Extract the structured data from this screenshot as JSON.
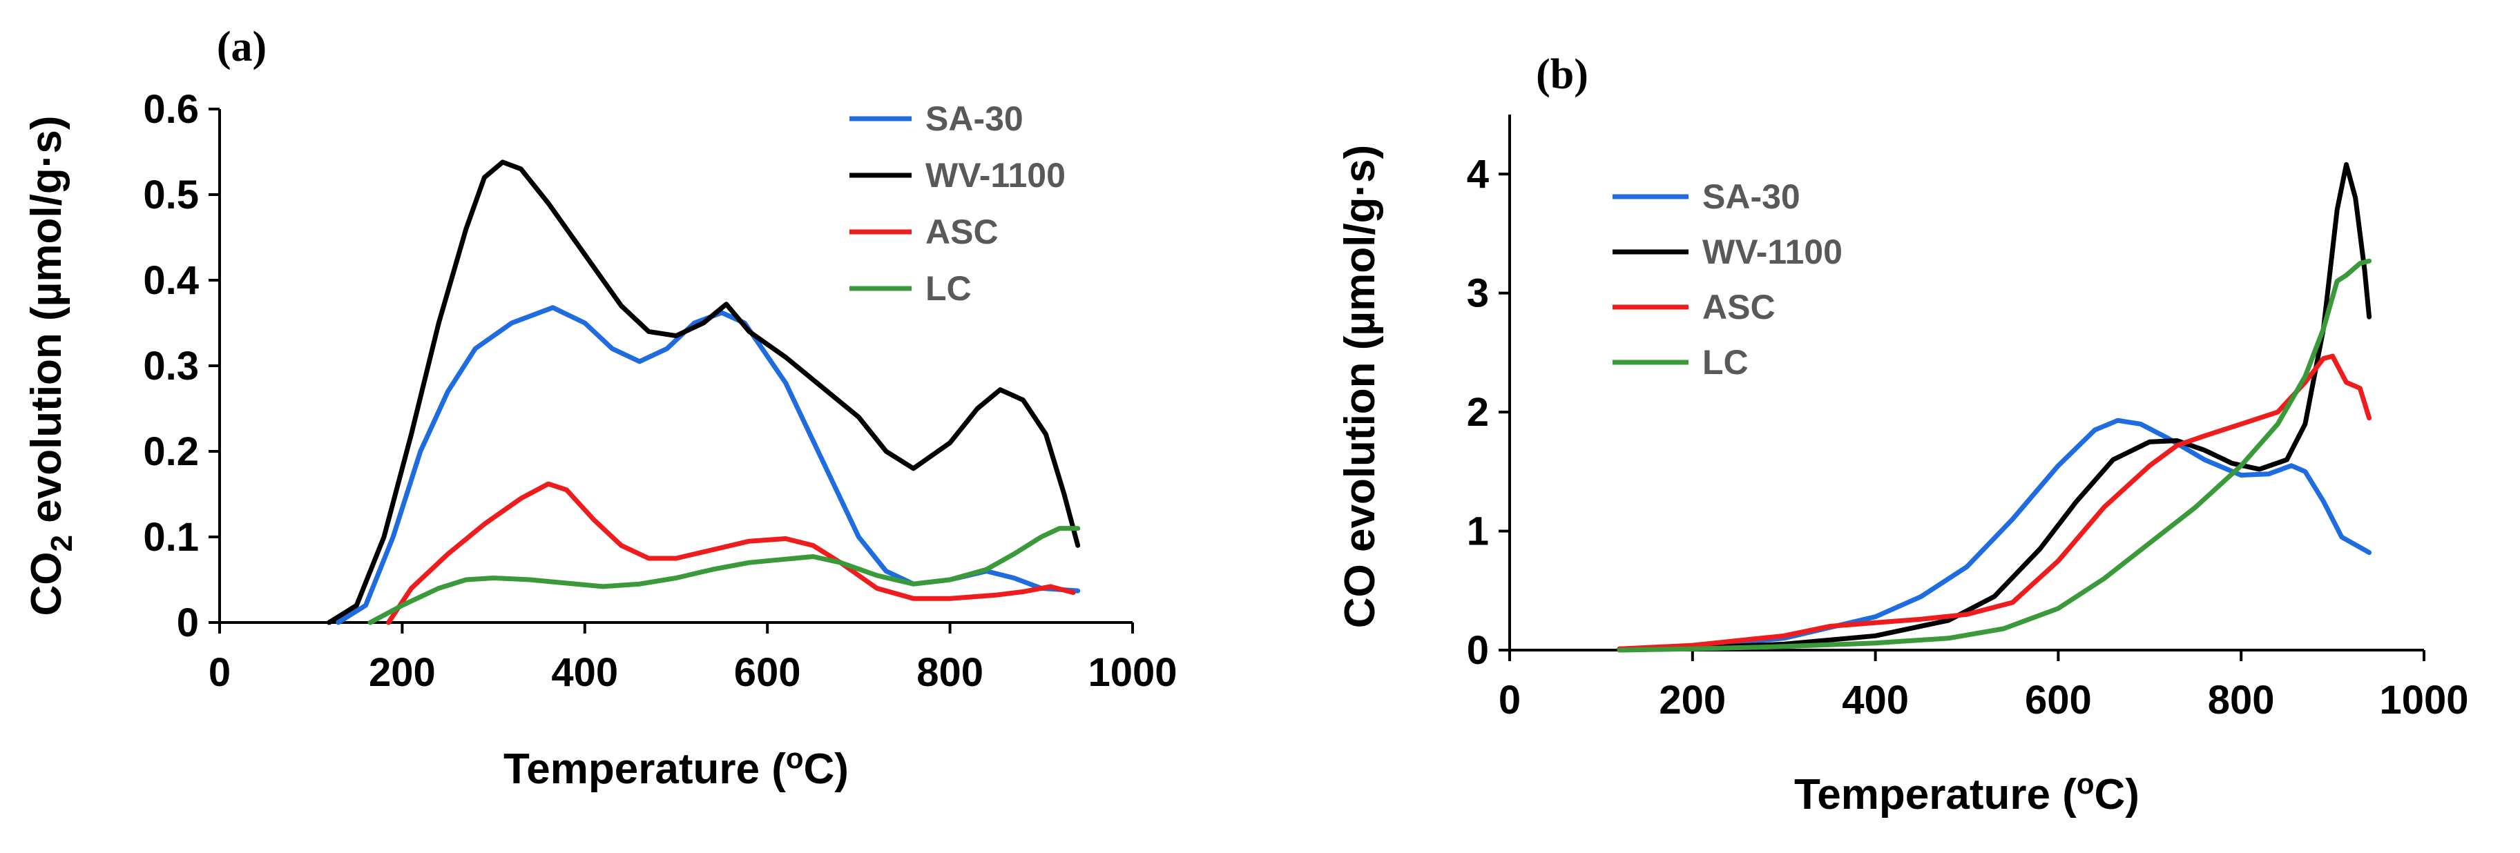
{
  "chart_data": [
    {
      "panel": "(a)",
      "type": "line",
      "xlabel": "Temperature (",
      "xlabel_sup": "o",
      "xlabel_end": "C)",
      "ylabel_pre": "CO",
      "ylabel_sub": "2",
      "ylabel_post": " evolution (µmol/g·s)",
      "xlim": [
        0,
        1000
      ],
      "ylim": [
        0,
        0.6
      ],
      "xticks": [
        0,
        200,
        400,
        600,
        800,
        1000
      ],
      "yticks": [
        0,
        0.1,
        0.2,
        0.3,
        0.4,
        0.5,
        0.6
      ],
      "ytick_labels": [
        "0",
        "0.1",
        "0.2",
        "0.3",
        "0.4",
        "0.5",
        "0.6"
      ],
      "grid": false,
      "legend_position": "top-right",
      "series": [
        {
          "name": "SA-30",
          "color": "#1f6be0",
          "points": [
            [
              130,
              0
            ],
            [
              160,
              0.02
            ],
            [
              190,
              0.1
            ],
            [
              220,
              0.2
            ],
            [
              250,
              0.27
            ],
            [
              280,
              0.32
            ],
            [
              320,
              0.35
            ],
            [
              365,
              0.368
            ],
            [
              400,
              0.35
            ],
            [
              430,
              0.32
            ],
            [
              460,
              0.305
            ],
            [
              490,
              0.32
            ],
            [
              520,
              0.35
            ],
            [
              550,
              0.362
            ],
            [
              575,
              0.35
            ],
            [
              620,
              0.28
            ],
            [
              660,
              0.19
            ],
            [
              700,
              0.1
            ],
            [
              730,
              0.06
            ],
            [
              760,
              0.045
            ],
            [
              800,
              0.05
            ],
            [
              840,
              0.06
            ],
            [
              870,
              0.052
            ],
            [
              900,
              0.04
            ],
            [
              940,
              0.037
            ]
          ]
        },
        {
          "name": "WV-1100",
          "color": "#000000",
          "points": [
            [
              120,
              0
            ],
            [
              150,
              0.02
            ],
            [
              180,
              0.1
            ],
            [
              210,
              0.22
            ],
            [
              240,
              0.35
            ],
            [
              270,
              0.46
            ],
            [
              290,
              0.52
            ],
            [
              310,
              0.538
            ],
            [
              330,
              0.53
            ],
            [
              360,
              0.49
            ],
            [
              400,
              0.43
            ],
            [
              440,
              0.37
            ],
            [
              470,
              0.34
            ],
            [
              500,
              0.335
            ],
            [
              530,
              0.35
            ],
            [
              555,
              0.372
            ],
            [
              580,
              0.34
            ],
            [
              620,
              0.31
            ],
            [
              660,
              0.275
            ],
            [
              700,
              0.24
            ],
            [
              730,
              0.2
            ],
            [
              760,
              0.18
            ],
            [
              800,
              0.21
            ],
            [
              830,
              0.25
            ],
            [
              855,
              0.272
            ],
            [
              880,
              0.26
            ],
            [
              905,
              0.22
            ],
            [
              925,
              0.15
            ],
            [
              940,
              0.09
            ]
          ]
        },
        {
          "name": "ASC",
          "color": "#ee1c1c",
          "points": [
            [
              185,
              0
            ],
            [
              210,
              0.04
            ],
            [
              250,
              0.08
            ],
            [
              290,
              0.115
            ],
            [
              330,
              0.145
            ],
            [
              360,
              0.162
            ],
            [
              380,
              0.155
            ],
            [
              410,
              0.12
            ],
            [
              440,
              0.09
            ],
            [
              470,
              0.075
            ],
            [
              500,
              0.075
            ],
            [
              540,
              0.085
            ],
            [
              580,
              0.095
            ],
            [
              620,
              0.098
            ],
            [
              650,
              0.09
            ],
            [
              680,
              0.07
            ],
            [
              720,
              0.04
            ],
            [
              760,
              0.028
            ],
            [
              800,
              0.028
            ],
            [
              850,
              0.032
            ],
            [
              880,
              0.036
            ],
            [
              910,
              0.042
            ],
            [
              935,
              0.035
            ]
          ]
        },
        {
          "name": "LC",
          "color": "#3a9a3a",
          "points": [
            [
              165,
              0
            ],
            [
              200,
              0.02
            ],
            [
              240,
              0.04
            ],
            [
              270,
              0.05
            ],
            [
              300,
              0.052
            ],
            [
              340,
              0.05
            ],
            [
              380,
              0.046
            ],
            [
              420,
              0.042
            ],
            [
              460,
              0.045
            ],
            [
              500,
              0.052
            ],
            [
              540,
              0.062
            ],
            [
              580,
              0.07
            ],
            [
              620,
              0.074
            ],
            [
              650,
              0.077
            ],
            [
              680,
              0.07
            ],
            [
              720,
              0.055
            ],
            [
              760,
              0.045
            ],
            [
              800,
              0.05
            ],
            [
              840,
              0.062
            ],
            [
              870,
              0.08
            ],
            [
              900,
              0.1
            ],
            [
              920,
              0.11
            ],
            [
              940,
              0.11
            ]
          ]
        }
      ]
    },
    {
      "panel": "(b)",
      "type": "line",
      "xlabel": "Temperature (",
      "xlabel_sup": "o",
      "xlabel_end": "C)",
      "ylabel_pre": "CO evolution (µmol/g·s)",
      "ylabel_sub": "",
      "ylabel_post": "",
      "xlim": [
        0,
        1000
      ],
      "ylim": [
        0,
        4.5
      ],
      "xticks": [
        0,
        200,
        400,
        600,
        800,
        1000
      ],
      "yticks": [
        0,
        1,
        2,
        3,
        4
      ],
      "ytick_labels": [
        "0",
        "1",
        "2",
        "3",
        "4"
      ],
      "grid": false,
      "legend_position": "top-left",
      "series": [
        {
          "name": "SA-30",
          "color": "#1f6be0",
          "points": [
            [
              120,
              0.01
            ],
            [
              200,
              0.03
            ],
            [
              300,
              0.1
            ],
            [
              400,
              0.28
            ],
            [
              450,
              0.45
            ],
            [
              500,
              0.7
            ],
            [
              550,
              1.1
            ],
            [
              600,
              1.55
            ],
            [
              640,
              1.85
            ],
            [
              665,
              1.93
            ],
            [
              690,
              1.9
            ],
            [
              720,
              1.78
            ],
            [
              760,
              1.6
            ],
            [
              800,
              1.47
            ],
            [
              830,
              1.48
            ],
            [
              855,
              1.55
            ],
            [
              870,
              1.5
            ],
            [
              890,
              1.25
            ],
            [
              910,
              0.95
            ],
            [
              940,
              0.82
            ]
          ]
        },
        {
          "name": "WV-1100",
          "color": "#000000",
          "points": [
            [
              120,
              0.01
            ],
            [
              200,
              0.02
            ],
            [
              300,
              0.05
            ],
            [
              400,
              0.12
            ],
            [
              480,
              0.25
            ],
            [
              530,
              0.45
            ],
            [
              580,
              0.85
            ],
            [
              620,
              1.25
            ],
            [
              660,
              1.6
            ],
            [
              700,
              1.75
            ],
            [
              730,
              1.76
            ],
            [
              760,
              1.68
            ],
            [
              790,
              1.57
            ],
            [
              820,
              1.52
            ],
            [
              850,
              1.6
            ],
            [
              870,
              1.9
            ],
            [
              890,
              2.7
            ],
            [
              905,
              3.7
            ],
            [
              915,
              4.08
            ],
            [
              925,
              3.8
            ],
            [
              935,
              3.2
            ],
            [
              940,
              2.8
            ]
          ]
        },
        {
          "name": "ASC",
          "color": "#ee1c1c",
          "points": [
            [
              120,
              0.01
            ],
            [
              200,
              0.04
            ],
            [
              300,
              0.12
            ],
            [
              350,
              0.2
            ],
            [
              400,
              0.23
            ],
            [
              450,
              0.26
            ],
            [
              500,
              0.3
            ],
            [
              550,
              0.4
            ],
            [
              600,
              0.75
            ],
            [
              650,
              1.2
            ],
            [
              700,
              1.55
            ],
            [
              730,
              1.72
            ],
            [
              760,
              1.8
            ],
            [
              800,
              1.9
            ],
            [
              840,
              2.0
            ],
            [
              870,
              2.25
            ],
            [
              890,
              2.45
            ],
            [
              900,
              2.47
            ],
            [
              915,
              2.25
            ],
            [
              930,
              2.2
            ],
            [
              940,
              1.95
            ]
          ]
        },
        {
          "name": "LC",
          "color": "#3a9a3a",
          "points": [
            [
              120,
              0.0
            ],
            [
              200,
              0.01
            ],
            [
              300,
              0.03
            ],
            [
              400,
              0.06
            ],
            [
              480,
              0.1
            ],
            [
              540,
              0.18
            ],
            [
              600,
              0.35
            ],
            [
              650,
              0.6
            ],
            [
              700,
              0.9
            ],
            [
              750,
              1.2
            ],
            [
              800,
              1.55
            ],
            [
              840,
              1.9
            ],
            [
              870,
              2.3
            ],
            [
              890,
              2.7
            ],
            [
              905,
              3.1
            ],
            [
              915,
              3.15
            ],
            [
              930,
              3.25
            ],
            [
              940,
              3.27
            ]
          ]
        }
      ]
    }
  ]
}
